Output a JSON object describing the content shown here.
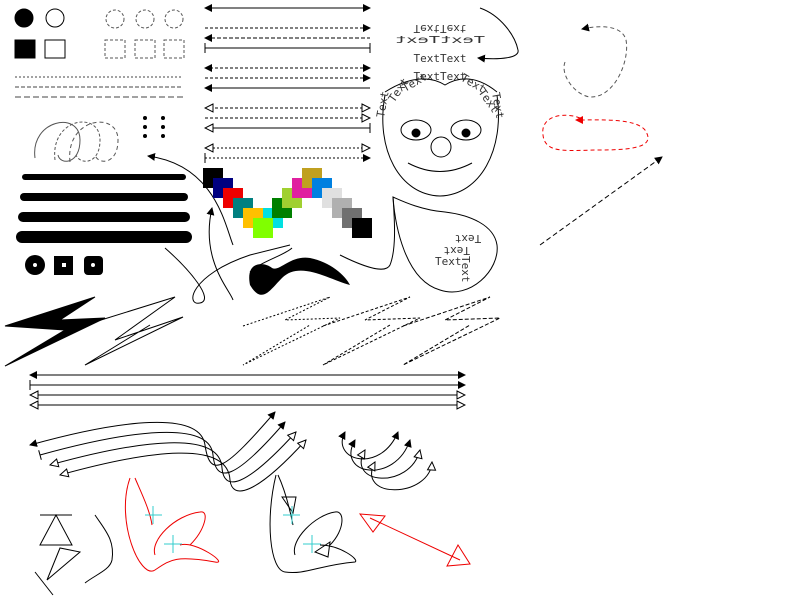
{
  "texts": {
    "top_flipped": "TextText",
    "wide_mirrored": "TextText",
    "plain_1": "TextText",
    "plain_2": "TextText",
    "arc_left": [
      "Text",
      "Text",
      "Text"
    ],
    "arc_right": [
      "Text",
      "Text",
      "Text"
    ],
    "blob": [
      "Text",
      "Text",
      "Text",
      "Text"
    ]
  }
}
